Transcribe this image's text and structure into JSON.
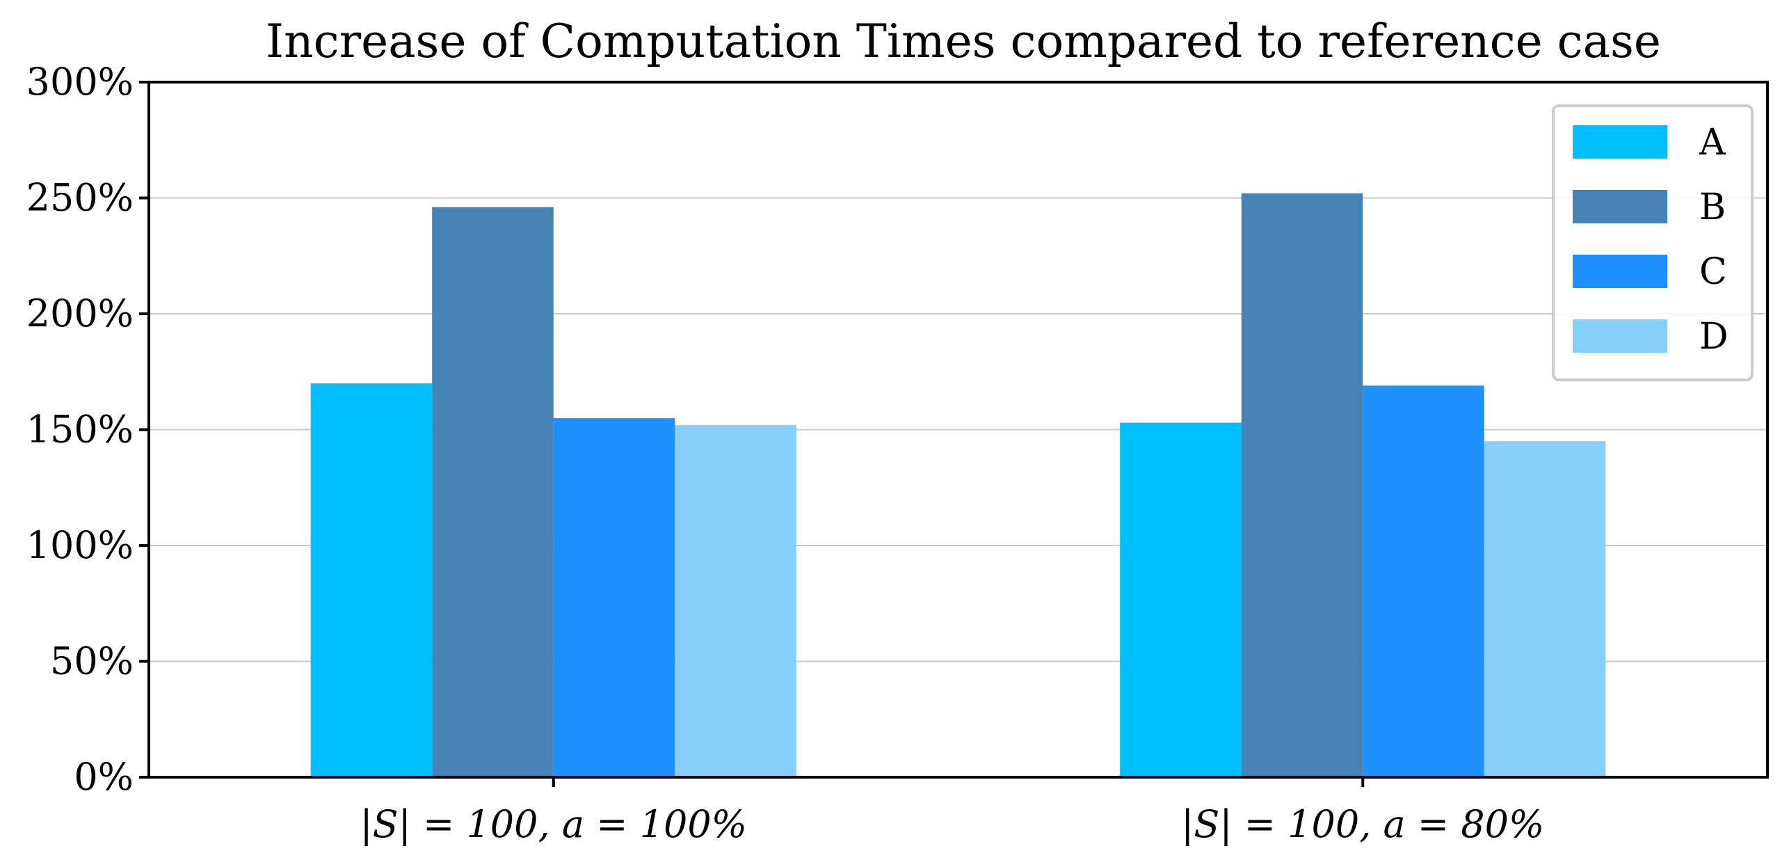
{
  "chart_data": {
    "type": "bar",
    "title": "Increase of Computation Times compared to reference case",
    "xlabel": "",
    "ylabel": "",
    "categories": [
      "|S| = 100, a = 100%",
      "|S| = 100, a = 80%"
    ],
    "series": [
      {
        "name": "A",
        "color": "#00bfff",
        "values": [
          170,
          153
        ]
      },
      {
        "name": "B",
        "color": "#4682b4",
        "values": [
          246,
          252
        ]
      },
      {
        "name": "C",
        "color": "#1e90ff",
        "values": [
          155,
          169
        ]
      },
      {
        "name": "D",
        "color": "#87cefa",
        "values": [
          152,
          145
        ]
      }
    ],
    "ylim": [
      0,
      300
    ],
    "yticks": [
      0,
      50,
      100,
      150,
      200,
      250,
      300
    ],
    "ytick_labels": [
      "0%",
      "50%",
      "100%",
      "150%",
      "200%",
      "250%",
      "300%"
    ],
    "grid": "horizontal",
    "legend_position": "top-right"
  }
}
